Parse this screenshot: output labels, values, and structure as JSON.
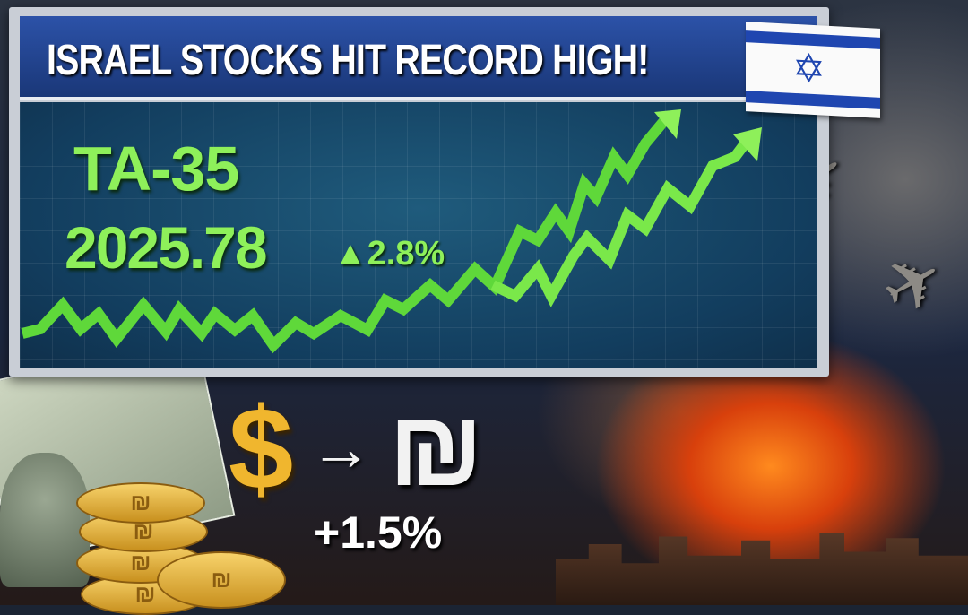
{
  "headline": "ISRAEL STOCKS HIT RECORD HIGH!",
  "index": {
    "name": "TA-35",
    "value": "2025.78",
    "change": "▲2.8%",
    "trend": "up"
  },
  "currency": {
    "from_symbol": "$",
    "arrow": "→",
    "to_symbol": "₪",
    "change": "+1.5%"
  },
  "flag_icon": "israel-flag",
  "colors": {
    "accent_green": "#8ef05a",
    "banner_blue": "#1f46b0",
    "gold": "#f0b62e"
  }
}
